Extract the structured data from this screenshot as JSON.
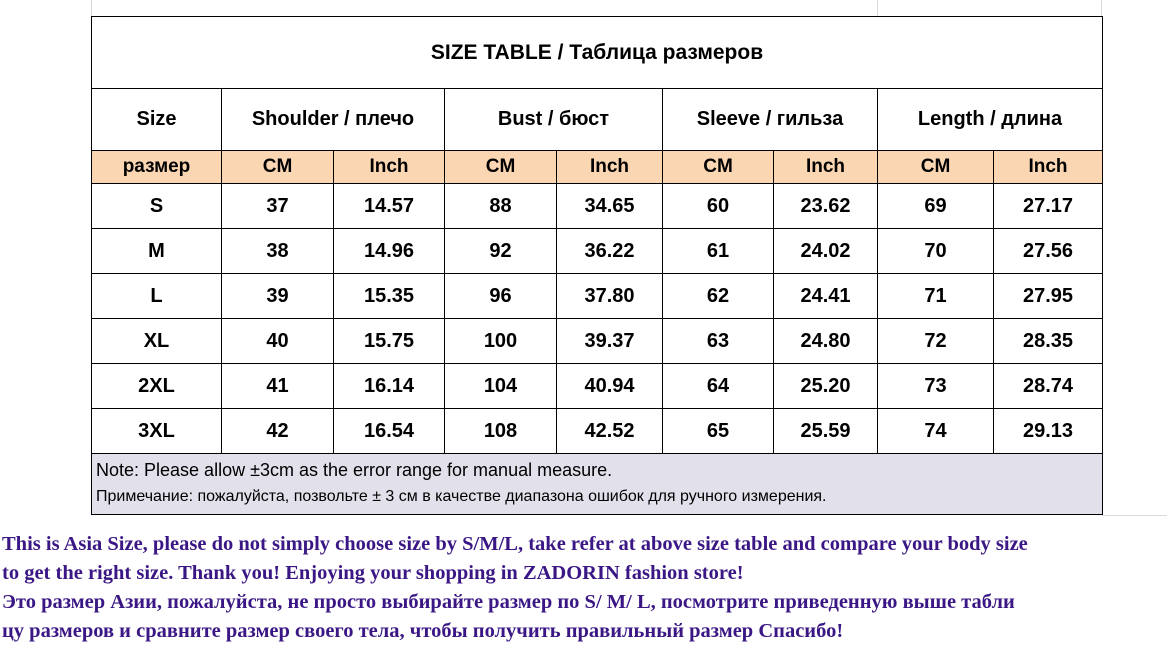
{
  "colors": {
    "units_row_bg": "#fbd6b3",
    "note_bg": "#e2e0ea",
    "footer_text": "#3a1785"
  },
  "table": {
    "title": "SIZE TABLE  / Таблица размеров",
    "headers": {
      "size": "Size",
      "shoulder": "Shoulder / плечо",
      "bust": "Bust / бюст",
      "sleeve": "Sleeve / гильза",
      "length": "Length / длина"
    },
    "units": [
      "размер",
      "CM",
      "Inch",
      "CM",
      "Inch",
      "CM",
      "Inch",
      "CM",
      "Inch"
    ],
    "rows": [
      [
        "S",
        "37",
        "14.57",
        "88",
        "34.65",
        "60",
        "23.62",
        "69",
        "27.17"
      ],
      [
        "M",
        "38",
        "14.96",
        "92",
        "36.22",
        "61",
        "24.02",
        "70",
        "27.56"
      ],
      [
        "L",
        "39",
        "15.35",
        "96",
        "37.80",
        "62",
        "24.41",
        "71",
        "27.95"
      ],
      [
        "XL",
        "40",
        "15.75",
        "100",
        "39.37",
        "63",
        "24.80",
        "72",
        "28.35"
      ],
      [
        "2XL",
        "41",
        "16.14",
        "104",
        "40.94",
        "64",
        "25.20",
        "73",
        "28.74"
      ],
      [
        "3XL",
        "42",
        "16.54",
        "108",
        "42.52",
        "65",
        "25.59",
        "74",
        "29.13"
      ]
    ],
    "note_en": "Note: Please allow ±3cm as the error range for manual measure.",
    "note_ru": "Примечание: пожалуйста, позвольте ± 3 см в качестве диапазона ошибок для ручного измерения."
  },
  "footer": {
    "lines": [
      "This is Asia Size, please do not simply choose size by S/M/L, take refer at above size table and compare your body size",
      "to get the right size. Thank you!  Enjoying your shopping in ZADORIN fashion store!",
      "Это размер Азии, пожалуйста, не просто выбирайте размер по S/ M/ L, посмотрите приведенную выше табли",
      "цу размеров и сравните размер своего тела, чтобы получить правильный размер Спасибо!"
    ]
  }
}
